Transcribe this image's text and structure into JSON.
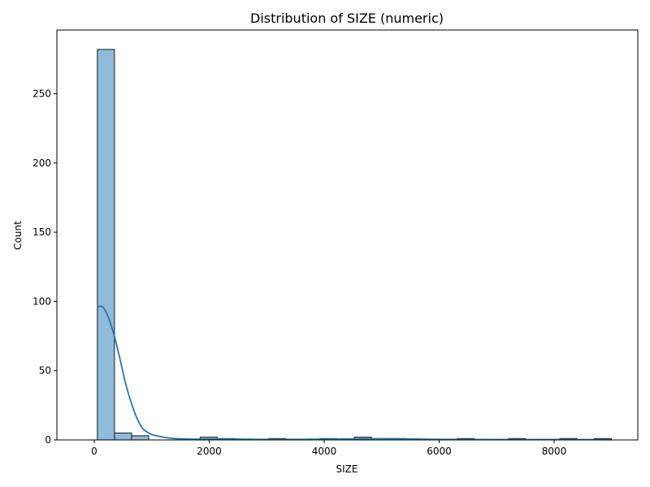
{
  "chart_data": {
    "type": "bar",
    "title": "Distribution of SIZE (numeric)",
    "xlabel": "SIZE",
    "ylabel": "Count",
    "xlim": [
      -650,
      9455
    ],
    "ylim": [
      0,
      296
    ],
    "xticks": [
      0,
      2000,
      4000,
      6000,
      8000
    ],
    "yticks": [
      0,
      50,
      100,
      150,
      200,
      250
    ],
    "grid": false,
    "bin_start": 54,
    "bin_width": 298,
    "counts": [
      282,
      5,
      3,
      0,
      0,
      0,
      2,
      1,
      0,
      0,
      1,
      0,
      0,
      1,
      0,
      2,
      1,
      1,
      0,
      0,
      0,
      1,
      0,
      0,
      1,
      0,
      0,
      1,
      0,
      1
    ],
    "kde": {
      "x": [
        54,
        150,
        250,
        350,
        450,
        550,
        650,
        750,
        850,
        1000,
        1200,
        1400,
        1700,
        2000,
        2500,
        3000,
        4000,
        5000,
        6000,
        7000,
        8000,
        8990
      ],
      "y": [
        96,
        96,
        88,
        75,
        58,
        40,
        26,
        15,
        8,
        4,
        2,
        1,
        0.6,
        0.6,
        0.6,
        0.4,
        0.5,
        0.9,
        0.4,
        0.3,
        0.3,
        0.2
      ]
    },
    "colors": {
      "bar_fill": "#8fbbdb",
      "bar_edge": "#1a1a1a",
      "kde_line": "#1f77b4"
    }
  }
}
